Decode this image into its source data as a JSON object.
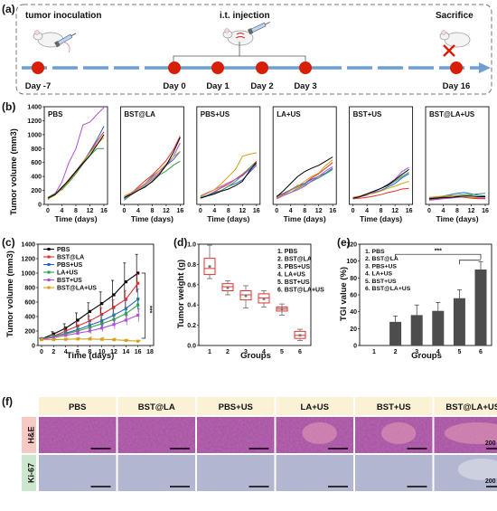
{
  "figure": {
    "panel_labels": [
      "(a)",
      "(b)",
      "(c)",
      "(d)",
      "(e)",
      "(f)"
    ],
    "colors": {
      "timeline_blue": "#6e9fd0",
      "event_red": "#d81e06",
      "histo_header_bg": "#fbf2d5",
      "he_tag_bg": "#f6c9c4",
      "ki67_tag_bg": "#cde7cf",
      "he_tissue": "#a54e9e",
      "ki67_tissue": "#b3b6cf"
    }
  },
  "timeline": {
    "events": [
      {
        "day": "Day -7",
        "label": "tumor inoculation"
      },
      {
        "day": "Day 0",
        "label": ""
      },
      {
        "day": "Day 1",
        "label": ""
      },
      {
        "day": "Day 2",
        "label": ""
      },
      {
        "day": "Day 3",
        "label": ""
      },
      {
        "day": "Day 16",
        "label": "Sacrifice"
      }
    ],
    "injection_label": "i.t. injection",
    "icons": [
      "mouse-icon",
      "syringe-icon",
      "red-cross-icon"
    ]
  },
  "chart_data": [
    {
      "panel": "b",
      "type": "line",
      "ylabel": "Tumor volume (mm3)",
      "xlabel": "Time (days)",
      "x_ticks": [
        0,
        4,
        8,
        12,
        16
      ],
      "y_ticks": [
        0,
        200,
        400,
        600,
        800,
        1000,
        1200,
        1400
      ],
      "ylim": [
        0,
        1400
      ],
      "xlim": [
        0,
        16
      ],
      "line_colors": [
        "#e03030",
        "#2c62c8",
        "#2f9e4a",
        "#b04fd6",
        "#d4a017",
        "#000000"
      ],
      "subplots": [
        {
          "title": "PBS",
          "x": [
            0,
            2,
            4,
            6,
            8,
            10,
            12,
            14,
            16
          ],
          "lines": [
            [
              90,
              150,
              230,
              360,
              480,
              610,
              740,
              900,
              1040
            ],
            [
              80,
              140,
              250,
              340,
              470,
              600,
              760,
              930,
              1120
            ],
            [
              100,
              160,
              210,
              320,
              440,
              580,
              700,
              800,
              800
            ],
            [
              70,
              150,
              320,
              600,
              800,
              1140,
              1180,
              1290,
              1390
            ],
            [
              80,
              130,
              220,
              340,
              460,
              600,
              740,
              860,
              960
            ],
            [
              90,
              140,
              240,
              350,
              470,
              590,
              700,
              850,
              1000
            ]
          ]
        },
        {
          "title": "BST@LA",
          "x": [
            0,
            2,
            4,
            6,
            8,
            10,
            12,
            14,
            16
          ],
          "lines": [
            [
              100,
              160,
              250,
              340,
              420,
              520,
              630,
              780,
              980
            ],
            [
              80,
              150,
              230,
              300,
              400,
              480,
              560,
              640,
              760
            ],
            [
              60,
              140,
              200,
              260,
              320,
              420,
              480,
              560,
              620
            ],
            [
              90,
              150,
              220,
              280,
              360,
              450,
              560,
              680,
              880
            ],
            [
              120,
              170,
              230,
              300,
              380,
              480,
              580,
              680,
              760
            ],
            [
              100,
              140,
              200,
              250,
              330,
              430,
              560,
              740,
              960
            ]
          ]
        },
        {
          "title": "PBS+US",
          "x": [
            0,
            2,
            4,
            6,
            8,
            10,
            12,
            14,
            16
          ],
          "lines": [
            [
              90,
              130,
              180,
              240,
              290,
              360,
              430,
              520,
              620
            ],
            [
              100,
              130,
              170,
              200,
              260,
              300,
              350,
              460,
              560
            ],
            [
              100,
              120,
              150,
              200,
              260,
              330,
              420,
              520,
              600
            ],
            [
              120,
              170,
              210,
              260,
              310,
              360,
              410,
              500,
              580
            ],
            [
              110,
              160,
              210,
              300,
              400,
              500,
              690,
              720,
              740
            ],
            [
              90,
              120,
              150,
              190,
              220,
              270,
              330,
              480,
              600
            ]
          ]
        },
        {
          "title": "LA+US",
          "x": [
            0,
            2,
            4,
            6,
            8,
            10,
            12,
            14,
            16
          ],
          "lines": [
            [
              100,
              150,
              200,
              250,
              300,
              380,
              440,
              520,
              600
            ],
            [
              120,
              160,
              210,
              270,
              300,
              360,
              400,
              450,
              520
            ],
            [
              90,
              130,
              170,
              230,
              280,
              330,
              380,
              440,
              500
            ],
            [
              80,
              130,
              170,
              210,
              260,
              340,
              400,
              480,
              540
            ],
            [
              100,
              140,
              200,
              260,
              330,
              400,
              450,
              560,
              640
            ],
            [
              110,
              200,
              300,
              400,
              470,
              520,
              560,
              620,
              680
            ]
          ]
        },
        {
          "title": "BST+US",
          "x": [
            0,
            2,
            4,
            6,
            8,
            10,
            12,
            14,
            16
          ],
          "lines": [
            [
              80,
              90,
              100,
              120,
              140,
              170,
              190,
              220,
              230
            ],
            [
              90,
              110,
              140,
              170,
              200,
              250,
              300,
              380,
              440
            ],
            [
              100,
              120,
              150,
              190,
              230,
              270,
              330,
              400,
              460
            ],
            [
              80,
              110,
              130,
              180,
              230,
              290,
              360,
              470,
              530
            ],
            [
              100,
              120,
              140,
              160,
              190,
              230,
              260,
              300,
              330
            ],
            [
              90,
              110,
              150,
              190,
              230,
              280,
              350,
              430,
              500
            ]
          ]
        },
        {
          "title": "BST@LA+US",
          "x": [
            0,
            2,
            4,
            6,
            8,
            10,
            12,
            14,
            16
          ],
          "lines": [
            [
              70,
              80,
              90,
              100,
              110,
              100,
              90,
              80,
              80
            ],
            [
              90,
              100,
              120,
              140,
              160,
              170,
              150,
              130,
              120
            ],
            [
              80,
              100,
              110,
              120,
              130,
              140,
              140,
              150,
              160
            ],
            [
              60,
              70,
              80,
              90,
              100,
              110,
              100,
              90,
              90
            ],
            [
              100,
              110,
              120,
              130,
              120,
              110,
              100,
              100,
              100
            ],
            [
              80,
              90,
              100,
              100,
              110,
              120,
              120,
              110,
              110
            ]
          ]
        }
      ]
    },
    {
      "panel": "c",
      "type": "line",
      "xlabel": "Time (days)",
      "ylabel": "Tumor volume (mm3)",
      "x_ticks": [
        0,
        2,
        4,
        6,
        8,
        10,
        12,
        14,
        16,
        18
      ],
      "y_ticks": [
        0,
        200,
        400,
        600,
        800,
        1000,
        1200,
        1400
      ],
      "xlim": [
        0,
        18
      ],
      "ylim": [
        0,
        1400
      ],
      "significance": "***",
      "x": [
        0,
        2,
        4,
        6,
        8,
        10,
        12,
        14,
        16
      ],
      "series": [
        {
          "name": "PBS",
          "color": "#000000",
          "marker": "square",
          "values": [
            90,
            160,
            240,
            350,
            470,
            580,
            700,
            880,
            1000
          ],
          "error": [
            10,
            30,
            60,
            100,
            120,
            160,
            200,
            260,
            260
          ]
        },
        {
          "name": "BST@LA",
          "color": "#e03030",
          "marker": "circle",
          "values": [
            85,
            130,
            200,
            270,
            340,
            430,
            530,
            640,
            860
          ],
          "error": [
            10,
            20,
            40,
            60,
            70,
            90,
            100,
            120,
            130
          ]
        },
        {
          "name": "PBS+US",
          "color": "#2c62c8",
          "marker": "triangle",
          "values": [
            95,
            125,
            170,
            220,
            280,
            340,
            420,
            510,
            640
          ],
          "error": [
            10,
            15,
            30,
            40,
            60,
            80,
            90,
            110,
            140
          ]
        },
        {
          "name": "LA+US",
          "color": "#2f9e4a",
          "marker": "triangle-down",
          "values": [
            90,
            125,
            160,
            200,
            250,
            300,
            360,
            440,
            560
          ],
          "error": [
            10,
            15,
            25,
            40,
            50,
            60,
            80,
            90,
            100
          ]
        },
        {
          "name": "BST+US",
          "color": "#b04fd6",
          "marker": "diamond",
          "values": [
            85,
            110,
            140,
            170,
            200,
            240,
            290,
            350,
            420
          ],
          "error": [
            10,
            15,
            20,
            30,
            40,
            50,
            60,
            70,
            90
          ]
        },
        {
          "name": "BST@LA+US",
          "color": "#d4a017",
          "marker": "triangle-left",
          "values": [
            80,
            80,
            85,
            90,
            90,
            85,
            80,
            70,
            60
          ],
          "error": [
            5,
            10,
            15,
            20,
            25,
            25,
            20,
            15,
            10
          ]
        }
      ]
    },
    {
      "panel": "d",
      "type": "box",
      "xlabel": "Groups",
      "ylabel": "Tumor weight (g)",
      "categories": [
        "1",
        "2",
        "3",
        "4",
        "5",
        "6"
      ],
      "y_ticks": [
        0.0,
        0.2,
        0.4,
        0.6,
        0.8,
        1.0
      ],
      "ylim": [
        0,
        1.0
      ],
      "legend": [
        "1. PBS",
        "2. BST@LA",
        "3. PBS+US",
        "4. LA+US",
        "5. BST+US",
        "6. BST@LA+US"
      ],
      "boxes": [
        {
          "min": 0.66,
          "q1": 0.7,
          "median": 0.76,
          "q3": 0.86,
          "max": 0.99,
          "mean": 0.78
        },
        {
          "min": 0.5,
          "q1": 0.54,
          "median": 0.58,
          "q3": 0.61,
          "max": 0.64,
          "mean": 0.57
        },
        {
          "min": 0.37,
          "q1": 0.45,
          "median": 0.5,
          "q3": 0.54,
          "max": 0.59,
          "mean": 0.49
        },
        {
          "min": 0.38,
          "q1": 0.42,
          "median": 0.47,
          "q3": 0.51,
          "max": 0.54,
          "mean": 0.46
        },
        {
          "min": 0.3,
          "q1": 0.34,
          "median": 0.36,
          "q3": 0.38,
          "max": 0.41,
          "mean": 0.36
        },
        {
          "min": 0.05,
          "q1": 0.07,
          "median": 0.1,
          "q3": 0.14,
          "max": 0.16,
          "mean": 0.1
        }
      ]
    },
    {
      "panel": "e",
      "type": "bar",
      "xlabel": "Groups",
      "ylabel": "TGI value (%)",
      "categories": [
        "1",
        "2",
        "3",
        "4",
        "5",
        "6"
      ],
      "values": [
        0,
        28,
        36,
        41,
        56,
        90
      ],
      "error": [
        0,
        7,
        12,
        10,
        10,
        9
      ],
      "y_ticks": [
        0,
        20,
        40,
        60,
        80,
        100,
        120
      ],
      "ylim": [
        0,
        120
      ],
      "significance": "***",
      "legend": [
        "1. PBS",
        "2. BST@LA",
        "3. PBS+US",
        "4. LA+US",
        "5. BST+US",
        "6. BST@LA+US"
      ]
    }
  ],
  "histology": {
    "columns": [
      "PBS",
      "BST@LA",
      "PBS+US",
      "LA+US",
      "BST+US",
      "BST@LA+US"
    ],
    "rows": [
      "H&E",
      "Ki-67"
    ],
    "scale_bar": "200 μm"
  }
}
